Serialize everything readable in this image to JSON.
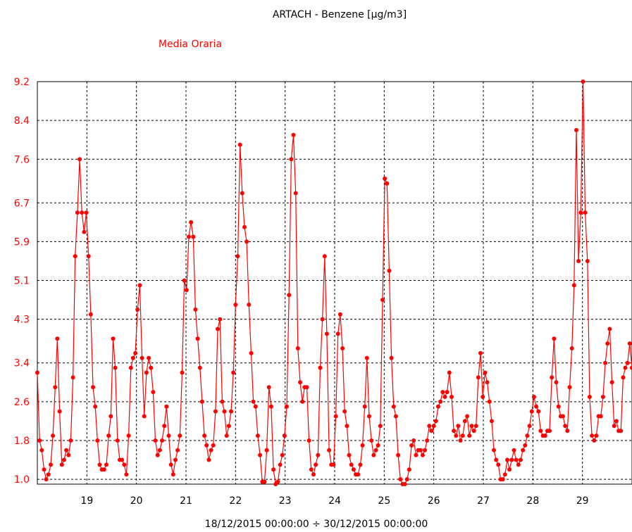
{
  "chart_data": {
    "type": "line",
    "title": "ARTACH - Benzene [µg/m3]",
    "subtitle": "Media Oraria",
    "xlabel": "18/12/2015 00:00:00 ÷ 30/12/2015 00:00:00",
    "ylabel": "",
    "x_range_days": [
      18,
      30
    ],
    "ylim": [
      0.9,
      9.2
    ],
    "grid": true,
    "y_ticks": [
      "9.2",
      "8.4",
      "7.6",
      "6.7",
      "5.9",
      "5.1",
      "4.3",
      "3.4",
      "2.6",
      "1.8",
      "1.0"
    ],
    "x_ticks": [
      "19",
      "20",
      "21",
      "22",
      "23",
      "24",
      "25",
      "26",
      "27",
      "28",
      "29"
    ],
    "colors": {
      "series": "#ff0000",
      "axis": "#000000",
      "grid": "#000000"
    },
    "series": [
      {
        "values": [
          3.2,
          1.8,
          1.6,
          1.2,
          1.0,
          1.1,
          1.3,
          1.9,
          2.9,
          3.9,
          2.4,
          1.3,
          1.4,
          1.6,
          1.5,
          1.8,
          3.1,
          5.6,
          6.5,
          7.6,
          6.5,
          6.1,
          6.5,
          5.6,
          4.4,
          2.9,
          2.5,
          1.8,
          1.3,
          1.2,
          1.2,
          1.3,
          1.9,
          2.3,
          3.9,
          3.3,
          1.8,
          1.4,
          1.4,
          1.3,
          1.1,
          1.9,
          3.3,
          3.5,
          3.6,
          4.5,
          5.0,
          3.5,
          2.3,
          3.2,
          3.5,
          3.3,
          2.8,
          1.8,
          1.5,
          1.6,
          1.8,
          2.1,
          2.5,
          1.9,
          1.3,
          1.1,
          1.4,
          1.6,
          1.9,
          3.2,
          5.1,
          4.9,
          6.0,
          6.3,
          6.0,
          4.5,
          3.9,
          3.3,
          2.6,
          1.9,
          1.7,
          1.4,
          1.6,
          1.7,
          2.4,
          4.1,
          4.3,
          2.6,
          2.4,
          1.9,
          2.1,
          2.4,
          3.2,
          4.6,
          5.6,
          7.9,
          6.9,
          6.2,
          5.9,
          4.6,
          3.6,
          2.6,
          2.5,
          1.9,
          1.5,
          0.95,
          0.95,
          1.6,
          2.9,
          2.5,
          1.2,
          0.9,
          0.95,
          1.3,
          1.5,
          1.9,
          2.5,
          4.8,
          7.6,
          8.1,
          6.9,
          3.7,
          3.0,
          2.6,
          2.9,
          2.9,
          1.8,
          1.2,
          1.1,
          1.3,
          1.5,
          3.3,
          4.3,
          5.6,
          4.0,
          1.6,
          1.3,
          1.3,
          2.3,
          4.0,
          4.4,
          3.7,
          2.4,
          2.1,
          1.5,
          1.3,
          1.2,
          1.1,
          1.1,
          1.3,
          1.7,
          2.5,
          3.5,
          2.3,
          1.8,
          1.5,
          1.6,
          1.7,
          2.1,
          4.7,
          7.2,
          7.1,
          5.3,
          3.5,
          2.5,
          2.3,
          1.5,
          1.0,
          0.9,
          0.9,
          1.0,
          1.2,
          1.7,
          1.8,
          1.5,
          1.6,
          1.6,
          1.5,
          1.6,
          1.8,
          2.1,
          2.0,
          2.1,
          2.2,
          2.5,
          2.6,
          2.8,
          2.7,
          2.8,
          3.2,
          2.7,
          2.0,
          1.9,
          2.1,
          1.8,
          1.9,
          2.2,
          2.3,
          1.9,
          2.1,
          2.0,
          2.1,
          3.1,
          3.6,
          2.7,
          3.2,
          3.0,
          2.6,
          2.2,
          1.6,
          1.4,
          1.3,
          1.0,
          1.0,
          1.1,
          1.4,
          1.2,
          1.4,
          1.6,
          1.4,
          1.3,
          1.4,
          1.6,
          1.7,
          1.9,
          2.1,
          2.4,
          2.7,
          2.5,
          2.4,
          2.0,
          1.9,
          1.9,
          2.0,
          2.0,
          3.1,
          3.9,
          3.0,
          2.5,
          2.3,
          2.3,
          2.1,
          2.0,
          2.9,
          3.7,
          5.0,
          8.2,
          5.5,
          6.5,
          9.2,
          6.5,
          5.5,
          2.7,
          1.9,
          1.8,
          1.9,
          2.3,
          2.3,
          2.7,
          3.4,
          3.8,
          4.1,
          3.0,
          2.1,
          2.2,
          2.0,
          2.0,
          3.1,
          3.3,
          3.4,
          3.8,
          3.3
        ]
      }
    ]
  }
}
